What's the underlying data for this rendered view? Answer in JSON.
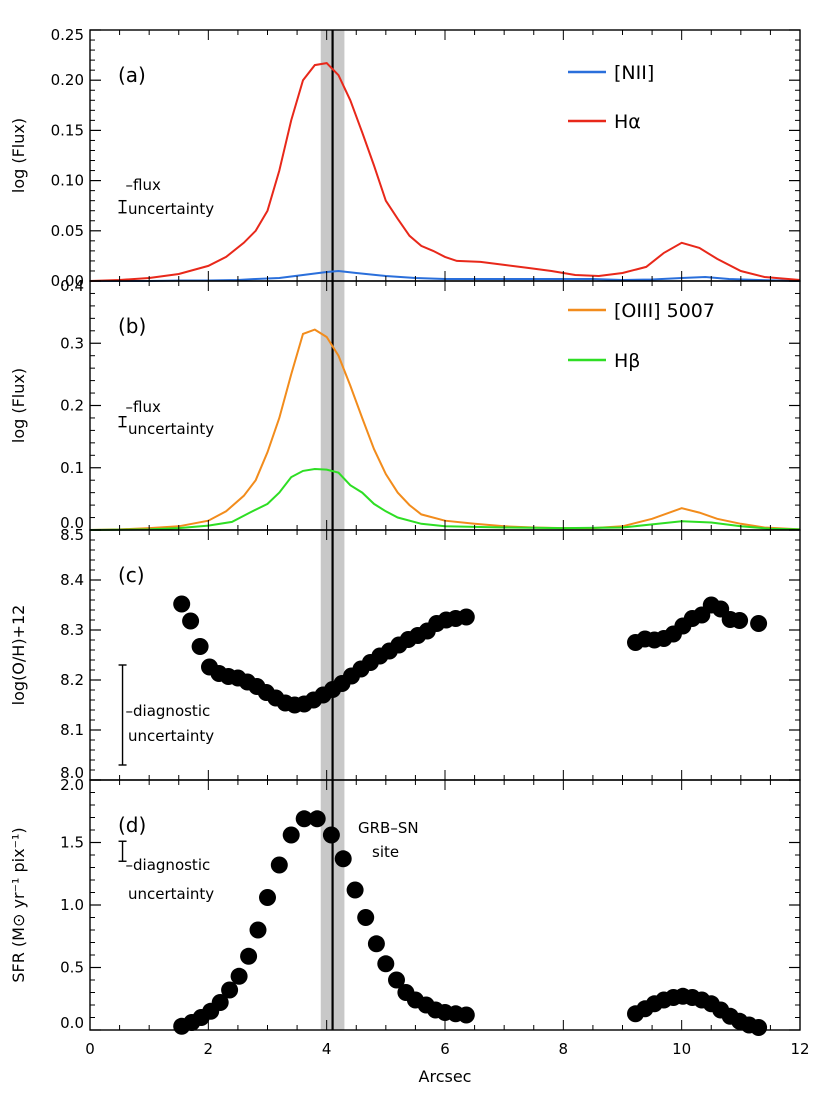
{
  "chart_data": {
    "x_axis": {
      "label": "Arcsec",
      "range": [
        0,
        12
      ],
      "ticks": [
        0,
        2,
        4,
        6,
        8,
        10,
        12
      ],
      "tick_labels": [
        "0",
        "2",
        "4",
        "6",
        "8",
        "10",
        "12"
      ]
    },
    "grb_sn_position": {
      "x": 4.1,
      "band": [
        3.9,
        4.3
      ],
      "band_color": "#c8c8c8",
      "line_color": "#000000"
    },
    "panels": [
      {
        "id": "a",
        "type": "line",
        "panel_label": "(a)",
        "ylabel": "log (Flux)",
        "ylim": [
          0,
          0.25
        ],
        "ytick_labels": [
          "0.00",
          "0.05",
          "0.10",
          "0.15",
          "0.20",
          "0.25"
        ],
        "uncertainty_note": [
          "–flux",
          "uncertainty"
        ],
        "uncertainty_bar": {
          "x": 0.55,
          "y": 0.074,
          "half": 0.006
        },
        "series": [
          {
            "name": "[NII]",
            "color": "#2a6fdb",
            "points": [
              [
                0,
                0
              ],
              [
                1,
                0
              ],
              [
                1.5,
                0.0005
              ],
              [
                2,
                0.0005
              ],
              [
                2.5,
                0.001
              ],
              [
                2.8,
                0.002
              ],
              [
                3.2,
                0.003
              ],
              [
                3.6,
                0.006
              ],
              [
                4.0,
                0.009
              ],
              [
                4.2,
                0.01
              ],
              [
                4.5,
                0.008
              ],
              [
                5,
                0.005
              ],
              [
                5.5,
                0.003
              ],
              [
                6,
                0.002
              ],
              [
                6.5,
                0.002
              ],
              [
                7,
                0.002
              ],
              [
                7.5,
                0.002
              ],
              [
                8,
                0.002
              ],
              [
                8.5,
                0.002
              ],
              [
                9,
                0.001
              ],
              [
                9.5,
                0.0015
              ],
              [
                10,
                0.003
              ],
              [
                10.4,
                0.004
              ],
              [
                10.8,
                0.002
              ],
              [
                11.3,
                0.001
              ],
              [
                12,
                0
              ]
            ]
          },
          {
            "name": "Hα",
            "color": "#e8281a",
            "points": [
              [
                0,
                0
              ],
              [
                0.5,
                0.001
              ],
              [
                1,
                0.003
              ],
              [
                1.5,
                0.007
              ],
              [
                2,
                0.015
              ],
              [
                2.3,
                0.024
              ],
              [
                2.6,
                0.038
              ],
              [
                2.8,
                0.05
              ],
              [
                3.0,
                0.07
              ],
              [
                3.2,
                0.11
              ],
              [
                3.4,
                0.16
              ],
              [
                3.6,
                0.2
              ],
              [
                3.8,
                0.215
              ],
              [
                4.0,
                0.217
              ],
              [
                4.2,
                0.205
              ],
              [
                4.4,
                0.18
              ],
              [
                4.6,
                0.148
              ],
              [
                4.8,
                0.115
              ],
              [
                5.0,
                0.08
              ],
              [
                5.2,
                0.062
              ],
              [
                5.4,
                0.045
              ],
              [
                5.6,
                0.035
              ],
              [
                5.8,
                0.03
              ],
              [
                6.0,
                0.024
              ],
              [
                6.2,
                0.02
              ],
              [
                6.6,
                0.019
              ],
              [
                7.0,
                0.016
              ],
              [
                7.4,
                0.013
              ],
              [
                7.8,
                0.01
              ],
              [
                8.2,
                0.006
              ],
              [
                8.6,
                0.005
              ],
              [
                9.0,
                0.008
              ],
              [
                9.4,
                0.014
              ],
              [
                9.7,
                0.028
              ],
              [
                10.0,
                0.038
              ],
              [
                10.3,
                0.033
              ],
              [
                10.6,
                0.022
              ],
              [
                11.0,
                0.01
              ],
              [
                11.4,
                0.004
              ],
              [
                12,
                0.001
              ]
            ]
          }
        ]
      },
      {
        "id": "b",
        "type": "line",
        "panel_label": "(b)",
        "ylabel": "log (Flux)",
        "ylim": [
          0,
          0.4
        ],
        "ytick_labels": [
          "0.0",
          "0.1",
          "0.2",
          "0.3",
          "0.4"
        ],
        "uncertainty_note": [
          "–flux",
          "uncertainty"
        ],
        "uncertainty_bar": {
          "x": 0.55,
          "y": 0.174,
          "half": 0.008
        },
        "series": [
          {
            "name": "[OIII] 5007",
            "color": "#f28c1c",
            "points": [
              [
                0,
                0
              ],
              [
                0.5,
                0.001
              ],
              [
                1,
                0.003
              ],
              [
                1.5,
                0.006
              ],
              [
                2,
                0.015
              ],
              [
                2.3,
                0.03
              ],
              [
                2.6,
                0.055
              ],
              [
                2.8,
                0.08
              ],
              [
                3.0,
                0.125
              ],
              [
                3.2,
                0.18
              ],
              [
                3.4,
                0.25
              ],
              [
                3.6,
                0.315
              ],
              [
                3.8,
                0.322
              ],
              [
                4.0,
                0.31
              ],
              [
                4.2,
                0.28
              ],
              [
                4.4,
                0.232
              ],
              [
                4.6,
                0.18
              ],
              [
                4.8,
                0.13
              ],
              [
                5.0,
                0.09
              ],
              [
                5.2,
                0.06
              ],
              [
                5.4,
                0.04
              ],
              [
                5.6,
                0.025
              ],
              [
                6.0,
                0.015
              ],
              [
                6.5,
                0.01
              ],
              [
                7,
                0.006
              ],
              [
                7.5,
                0.004
              ],
              [
                8,
                0.003
              ],
              [
                8.5,
                0.003
              ],
              [
                9,
                0.006
              ],
              [
                9.5,
                0.018
              ],
              [
                10.0,
                0.035
              ],
              [
                10.3,
                0.028
              ],
              [
                10.6,
                0.018
              ],
              [
                11,
                0.01
              ],
              [
                11.4,
                0.004
              ],
              [
                12,
                0.001
              ]
            ]
          },
          {
            "name": "Hβ",
            "color": "#2ede24",
            "points": [
              [
                0,
                0
              ],
              [
                1,
                0.001
              ],
              [
                1.5,
                0.003
              ],
              [
                2,
                0.007
              ],
              [
                2.4,
                0.013
              ],
              [
                2.7,
                0.028
              ],
              [
                3.0,
                0.042
              ],
              [
                3.2,
                0.06
              ],
              [
                3.4,
                0.085
              ],
              [
                3.6,
                0.095
              ],
              [
                3.8,
                0.098
              ],
              [
                4.0,
                0.097
              ],
              [
                4.2,
                0.092
              ],
              [
                4.4,
                0.072
              ],
              [
                4.6,
                0.06
              ],
              [
                4.8,
                0.042
              ],
              [
                5.0,
                0.03
              ],
              [
                5.2,
                0.02
              ],
              [
                5.6,
                0.01
              ],
              [
                6,
                0.006
              ],
              [
                7,
                0.004
              ],
              [
                8,
                0.003
              ],
              [
                9,
                0.004
              ],
              [
                9.5,
                0.009
              ],
              [
                10,
                0.014
              ],
              [
                10.5,
                0.012
              ],
              [
                11,
                0.006
              ],
              [
                11.5,
                0.002
              ],
              [
                12,
                0.001
              ]
            ]
          }
        ]
      },
      {
        "id": "c",
        "type": "scatter",
        "panel_label": "(c)",
        "ylabel": "log(O/H)+12",
        "ylim": [
          8.0,
          8.5
        ],
        "ytick_labels": [
          "8.0",
          "8.1",
          "8.2",
          "8.3",
          "8.4",
          "8.5"
        ],
        "uncertainty_note": [
          "–diagnostic",
          "uncertainty"
        ],
        "uncertainty_bar": {
          "x": 0.55,
          "y": 8.13,
          "half": 0.1
        },
        "marker_color": "#000000",
        "points": [
          [
            1.55,
            8.352
          ],
          [
            1.7,
            8.318
          ],
          [
            1.86,
            8.267
          ],
          [
            2.02,
            8.226
          ],
          [
            2.18,
            8.213
          ],
          [
            2.34,
            8.207
          ],
          [
            2.5,
            8.204
          ],
          [
            2.66,
            8.196
          ],
          [
            2.82,
            8.187
          ],
          [
            2.98,
            8.175
          ],
          [
            3.14,
            8.164
          ],
          [
            3.3,
            8.154
          ],
          [
            3.46,
            8.15
          ],
          [
            3.62,
            8.152
          ],
          [
            3.78,
            8.16
          ],
          [
            3.94,
            8.17
          ],
          [
            4.1,
            8.181
          ],
          [
            4.26,
            8.193
          ],
          [
            4.42,
            8.208
          ],
          [
            4.58,
            8.222
          ],
          [
            4.74,
            8.235
          ],
          [
            4.9,
            8.248
          ],
          [
            5.06,
            8.258
          ],
          [
            5.22,
            8.27
          ],
          [
            5.38,
            8.281
          ],
          [
            5.54,
            8.289
          ],
          [
            5.7,
            8.298
          ],
          [
            5.86,
            8.313
          ],
          [
            6.02,
            8.32
          ],
          [
            6.18,
            8.323
          ],
          [
            6.36,
            8.326
          ],
          [
            9.22,
            8.275
          ],
          [
            9.38,
            8.282
          ],
          [
            9.54,
            8.28
          ],
          [
            9.7,
            8.283
          ],
          [
            9.86,
            8.292
          ],
          [
            10.02,
            8.308
          ],
          [
            10.18,
            8.323
          ],
          [
            10.34,
            8.33
          ],
          [
            10.5,
            8.35
          ],
          [
            10.66,
            8.342
          ],
          [
            10.82,
            8.321
          ],
          [
            10.98,
            8.319
          ],
          [
            11.3,
            8.313
          ]
        ]
      },
      {
        "id": "d",
        "type": "scatter",
        "panel_label": "(d)",
        "ylabel": "SFR (M⊙ yr⁻¹ pix⁻¹)",
        "ylim": [
          0,
          2.0
        ],
        "ytick_labels": [
          "0.0",
          "0.5",
          "1.0",
          "1.5",
          "2.0"
        ],
        "uncertainty_note": [
          "–diagnostic",
          "uncertainty"
        ],
        "uncertainty_bar": {
          "x": 0.55,
          "y": 1.43,
          "half": 0.08
        },
        "annotation": [
          "GRB–SN",
          "site"
        ],
        "marker_color": "#000000",
        "points": [
          [
            1.55,
            0.03
          ],
          [
            1.72,
            0.06
          ],
          [
            1.88,
            0.1
          ],
          [
            2.04,
            0.15
          ],
          [
            2.2,
            0.22
          ],
          [
            2.36,
            0.32
          ],
          [
            2.52,
            0.43
          ],
          [
            2.68,
            0.59
          ],
          [
            2.84,
            0.8
          ],
          [
            3.0,
            1.06
          ],
          [
            3.2,
            1.32
          ],
          [
            3.4,
            1.56
          ],
          [
            3.62,
            1.69
          ],
          [
            3.84,
            1.69
          ],
          [
            4.08,
            1.56
          ],
          [
            4.28,
            1.37
          ],
          [
            4.48,
            1.12
          ],
          [
            4.66,
            0.9
          ],
          [
            4.84,
            0.69
          ],
          [
            5.0,
            0.53
          ],
          [
            5.18,
            0.4
          ],
          [
            5.34,
            0.3
          ],
          [
            5.5,
            0.24
          ],
          [
            5.68,
            0.2
          ],
          [
            5.84,
            0.16
          ],
          [
            6.0,
            0.14
          ],
          [
            6.18,
            0.13
          ],
          [
            6.36,
            0.12
          ],
          [
            9.22,
            0.13
          ],
          [
            9.38,
            0.17
          ],
          [
            9.54,
            0.21
          ],
          [
            9.7,
            0.24
          ],
          [
            9.86,
            0.26
          ],
          [
            10.02,
            0.27
          ],
          [
            10.18,
            0.26
          ],
          [
            10.34,
            0.24
          ],
          [
            10.5,
            0.21
          ],
          [
            10.66,
            0.16
          ],
          [
            10.82,
            0.11
          ],
          [
            10.98,
            0.07
          ],
          [
            11.14,
            0.04
          ],
          [
            11.3,
            0.02
          ]
        ]
      }
    ]
  }
}
